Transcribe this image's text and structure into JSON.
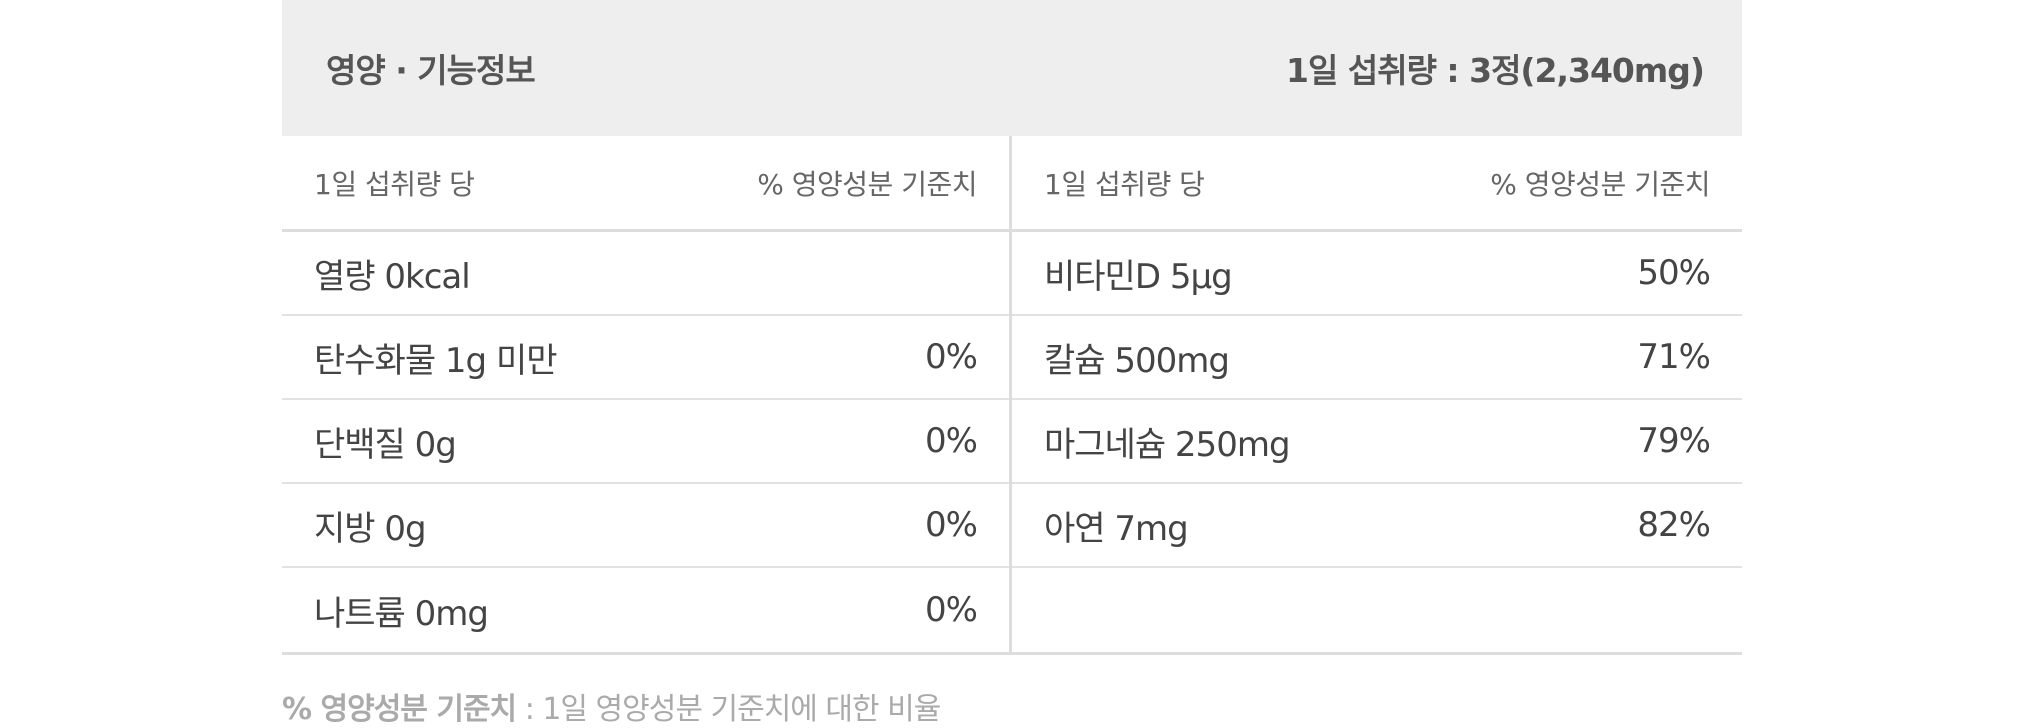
{
  "header": {
    "title": "영양 · 기능정보",
    "serving": "1일 섭취량 : 3정(2,340mg)"
  },
  "columns": [
    {
      "sub_left": "1일 섭취량 당",
      "sub_right": "% 영양성분 기준치",
      "rows": [
        {
          "name": "열량 0kcal",
          "pct": ""
        },
        {
          "name": "탄수화물 1g 미만",
          "pct": "0%"
        },
        {
          "name": "단백질 0g",
          "pct": "0%"
        },
        {
          "name": "지방 0g",
          "pct": "0%"
        },
        {
          "name": "나트륨 0mg",
          "pct": "0%"
        }
      ]
    },
    {
      "sub_left": "1일 섭취량 당",
      "sub_right": "% 영양성분 기준치",
      "rows": [
        {
          "name": "비타민D 5μg",
          "pct": "50%"
        },
        {
          "name": "칼슘 500mg",
          "pct": "71%"
        },
        {
          "name": "마그네슘 250mg",
          "pct": "79%"
        },
        {
          "name": "아연 7mg",
          "pct": "82%"
        },
        {
          "name": "",
          "pct": ""
        }
      ]
    }
  ],
  "footnote": {
    "term": "% 영양성분 기준치",
    "definition": " : 1일 영양성분 기준치에 대한 비율"
  }
}
